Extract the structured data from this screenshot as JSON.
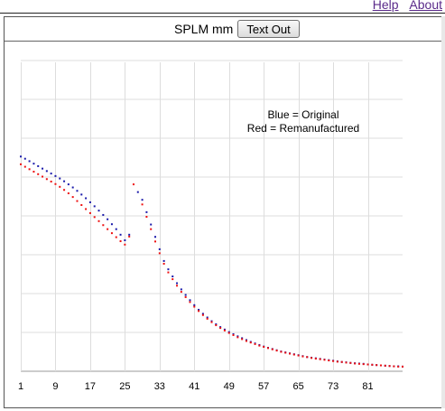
{
  "links": {
    "help": "Help",
    "about": "About"
  },
  "toolbar": {
    "metric": "SPLM mm",
    "text_out_label": "Text Out"
  },
  "colors": {
    "original": "#1a1aaa",
    "remanufactured": "#ee1111",
    "grid": "#dddddd",
    "axis": "#999999"
  },
  "chart_data": {
    "type": "scatter",
    "title": "",
    "xlabel": "",
    "ylabel": "",
    "xlim": [
      1,
      89
    ],
    "ylim": [
      0,
      10
    ],
    "x_ticks": [
      1,
      9,
      17,
      25,
      33,
      41,
      49,
      57,
      65,
      73,
      81
    ],
    "grid": true,
    "legend": {
      "lines": [
        "Blue = Original",
        "Red = Remanufactured"
      ],
      "placement": "top-right"
    },
    "series": [
      {
        "name": "Original",
        "color": "#1a1aaa",
        "x": [
          1,
          2,
          3,
          4,
          5,
          6,
          7,
          8,
          9,
          10,
          11,
          12,
          13,
          14,
          15,
          16,
          17,
          18,
          19,
          20,
          21,
          22,
          23,
          24,
          25,
          26,
          28,
          29,
          30,
          31,
          32,
          33,
          34,
          35,
          36,
          37,
          38,
          39,
          40,
          41,
          42,
          43,
          44,
          45,
          46,
          47,
          48,
          49,
          50,
          51,
          52,
          53,
          54,
          55,
          56,
          57,
          58,
          59,
          60,
          61,
          62,
          63,
          64,
          65,
          66,
          67,
          68,
          69,
          70,
          71,
          72,
          73,
          74,
          75,
          76,
          77,
          78,
          79,
          80,
          81,
          82,
          83,
          84,
          85,
          86,
          87,
          88,
          89
        ],
        "y": [
          6.95,
          6.88,
          6.8,
          6.72,
          6.64,
          6.56,
          6.48,
          6.4,
          6.32,
          6.24,
          6.15,
          6.05,
          5.95,
          5.84,
          5.72,
          5.6,
          5.47,
          5.34,
          5.2,
          5.06,
          4.92,
          4.76,
          4.6,
          4.42,
          4.24,
          4.42,
          5.8,
          5.55,
          5.15,
          4.75,
          4.35,
          3.95,
          3.57,
          3.3,
          3.07,
          2.85,
          2.65,
          2.47,
          2.3,
          2.14,
          1.99,
          1.86,
          1.74,
          1.62,
          1.52,
          1.43,
          1.35,
          1.27,
          1.2,
          1.13,
          1.07,
          1.01,
          0.95,
          0.9,
          0.85,
          0.8,
          0.76,
          0.72,
          0.68,
          0.64,
          0.61,
          0.58,
          0.55,
          0.52,
          0.49,
          0.46,
          0.44,
          0.42,
          0.4,
          0.38,
          0.36,
          0.34,
          0.32,
          0.3,
          0.29,
          0.27,
          0.26,
          0.25,
          0.24,
          0.22,
          0.21,
          0.2,
          0.19,
          0.18,
          0.17,
          0.16,
          0.16,
          0.15
        ]
      },
      {
        "name": "Remanufactured",
        "color": "#ee1111",
        "x": [
          1,
          2,
          3,
          4,
          5,
          6,
          7,
          8,
          9,
          10,
          11,
          12,
          13,
          14,
          15,
          16,
          17,
          18,
          19,
          20,
          21,
          22,
          23,
          24,
          25,
          26,
          27,
          29,
          30,
          31,
          32,
          33,
          34,
          35,
          36,
          37,
          38,
          39,
          40,
          41,
          42,
          43,
          44,
          45,
          46,
          47,
          48,
          49,
          50,
          51,
          52,
          53,
          54,
          55,
          56,
          57,
          58,
          59,
          60,
          61,
          62,
          63,
          64,
          65,
          66,
          67,
          68,
          69,
          70,
          71,
          72,
          73,
          74,
          75,
          76,
          77,
          78,
          79,
          80,
          81,
          82,
          83,
          84,
          85,
          86,
          87,
          88,
          89
        ],
        "y": [
          6.7,
          6.62,
          6.54,
          6.46,
          6.38,
          6.3,
          6.22,
          6.14,
          6.06,
          5.97,
          5.87,
          5.76,
          5.64,
          5.51,
          5.38,
          5.25,
          5.12,
          4.99,
          4.86,
          4.73,
          4.6,
          4.47,
          4.34,
          4.21,
          4.1,
          4.36,
          6.05,
          5.4,
          5.0,
          4.6,
          4.2,
          3.82,
          3.48,
          3.2,
          2.98,
          2.77,
          2.57,
          2.4,
          2.24,
          2.09,
          1.95,
          1.82,
          1.7,
          1.59,
          1.49,
          1.4,
          1.32,
          1.24,
          1.17,
          1.1,
          1.04,
          0.98,
          0.93,
          0.88,
          0.83,
          0.79,
          0.75,
          0.71,
          0.67,
          0.63,
          0.6,
          0.57,
          0.54,
          0.51,
          0.48,
          0.46,
          0.43,
          0.41,
          0.39,
          0.37,
          0.35,
          0.33,
          0.31,
          0.3,
          0.28,
          0.27,
          0.25,
          0.24,
          0.23,
          0.22,
          0.21,
          0.2,
          0.19,
          0.18,
          0.17,
          0.16,
          0.15,
          0.15
        ]
      }
    ]
  }
}
